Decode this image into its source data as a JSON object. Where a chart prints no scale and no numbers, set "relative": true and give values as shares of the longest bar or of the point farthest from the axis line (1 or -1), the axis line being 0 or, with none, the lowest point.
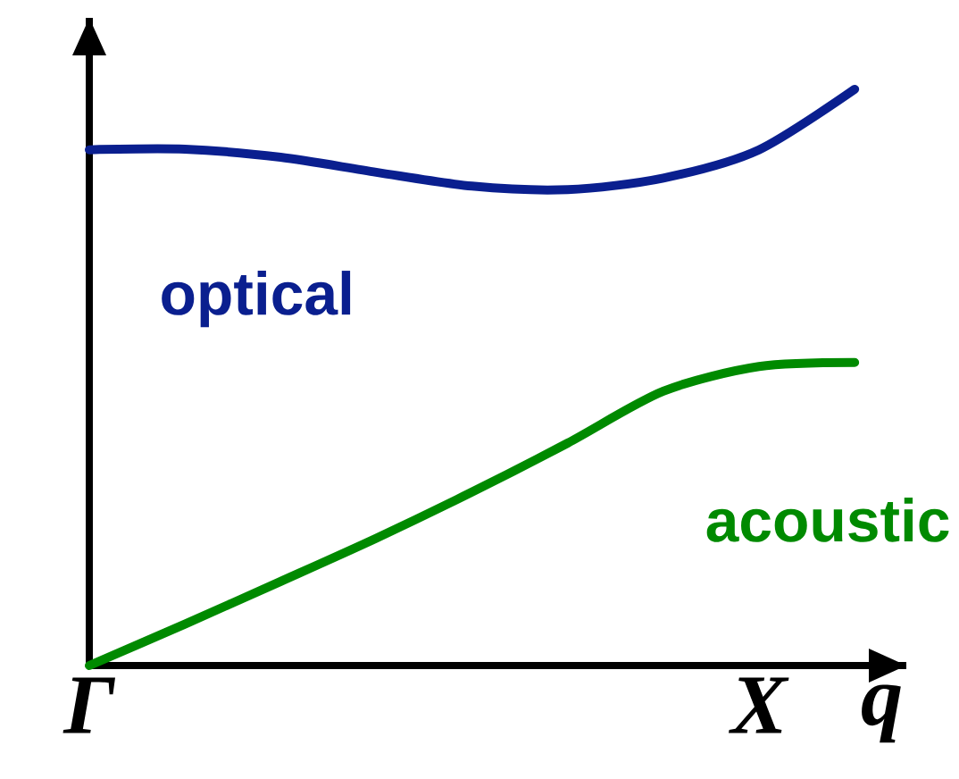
{
  "chart_data": {
    "type": "line",
    "relative": true,
    "xlabel": "q",
    "tick_labels": "x",
    "categories": [
      "Γ",
      null,
      null,
      null,
      null,
      null,
      null,
      "X",
      null
    ],
    "series": [
      {
        "name": "optical",
        "color": "#0a1f8f",
        "values": [
          0.895,
          0.896,
          0.882,
          0.856,
          0.832,
          0.826,
          0.846,
          0.895,
          1.0
        ]
      },
      {
        "name": "acoustic",
        "color": "#008a00",
        "values": [
          0.0,
          0.072,
          0.146,
          0.221,
          0.301,
          0.386,
          0.476,
          0.519,
          0.526
        ]
      }
    ]
  }
}
